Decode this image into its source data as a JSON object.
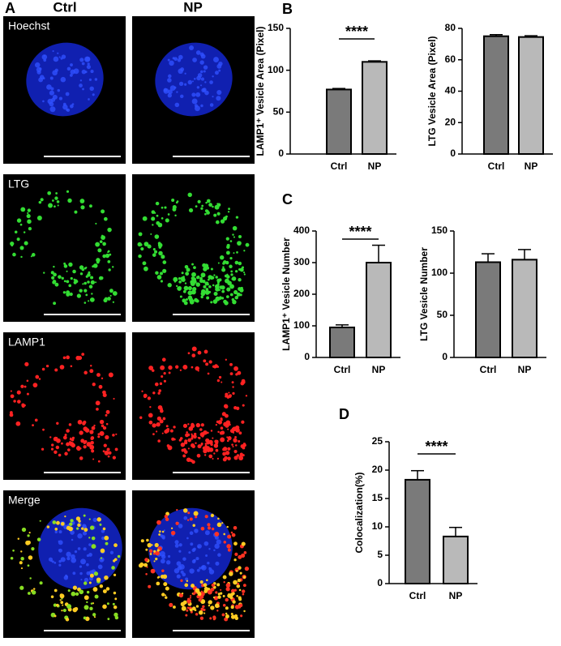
{
  "figure": {
    "panel_labels": [
      "A",
      "B",
      "C",
      "D"
    ],
    "columns": [
      "Ctrl",
      "NP"
    ],
    "rows": [
      "Hoechst",
      "LTG",
      "LAMP1",
      "Merge"
    ]
  },
  "chart_data": [
    {
      "type": "bar",
      "ylabel": "LAMP1⁺ Vesicle Area (Pixel)",
      "categories": [
        "Ctrl",
        "NP"
      ],
      "values": [
        77,
        110
      ],
      "errors": [
        1.2,
        1.2
      ],
      "colors": [
        "#7a7a7a",
        "#b9b9b9"
      ],
      "ylim": [
        0,
        150
      ],
      "yticks": [
        0,
        50,
        100,
        150
      ],
      "annotation": "****"
    },
    {
      "type": "bar",
      "ylabel": "LTG Vesicle Area (Pixel)",
      "categories": [
        "Ctrl",
        "NP"
      ],
      "values": [
        75,
        74.5
      ],
      "errors": [
        1,
        0.8
      ],
      "colors": [
        "#7a7a7a",
        "#b9b9b9"
      ],
      "ylim": [
        0,
        80
      ],
      "yticks": [
        0,
        20,
        40,
        60,
        80
      ]
    },
    {
      "type": "bar",
      "ylabel": "LAMP1⁺ Vesicle Number",
      "categories": [
        "Ctrl",
        "NP"
      ],
      "values": [
        95,
        300
      ],
      "errors": [
        8,
        55
      ],
      "colors": [
        "#7a7a7a",
        "#b9b9b9"
      ],
      "ylim": [
        0,
        400
      ],
      "yticks": [
        0,
        100,
        200,
        300,
        400
      ],
      "annotation": "****"
    },
    {
      "type": "bar",
      "ylabel": "LTG Vesicle Number",
      "categories": [
        "Ctrl",
        "NP"
      ],
      "values": [
        113,
        116
      ],
      "errors": [
        10,
        12
      ],
      "colors": [
        "#7a7a7a",
        "#b9b9b9"
      ],
      "ylim": [
        0,
        150
      ],
      "yticks": [
        0,
        50,
        100,
        150
      ]
    },
    {
      "type": "bar",
      "ylabel": "Colocalization(%)",
      "categories": [
        "Ctrl",
        "NP"
      ],
      "values": [
        18.3,
        8.3
      ],
      "errors": [
        1.6,
        1.6
      ],
      "colors": [
        "#7a7a7a",
        "#b9b9b9"
      ],
      "ylim": [
        0,
        25
      ],
      "yticks": [
        0,
        5,
        10,
        15,
        20,
        25
      ],
      "annotation": "****"
    }
  ]
}
